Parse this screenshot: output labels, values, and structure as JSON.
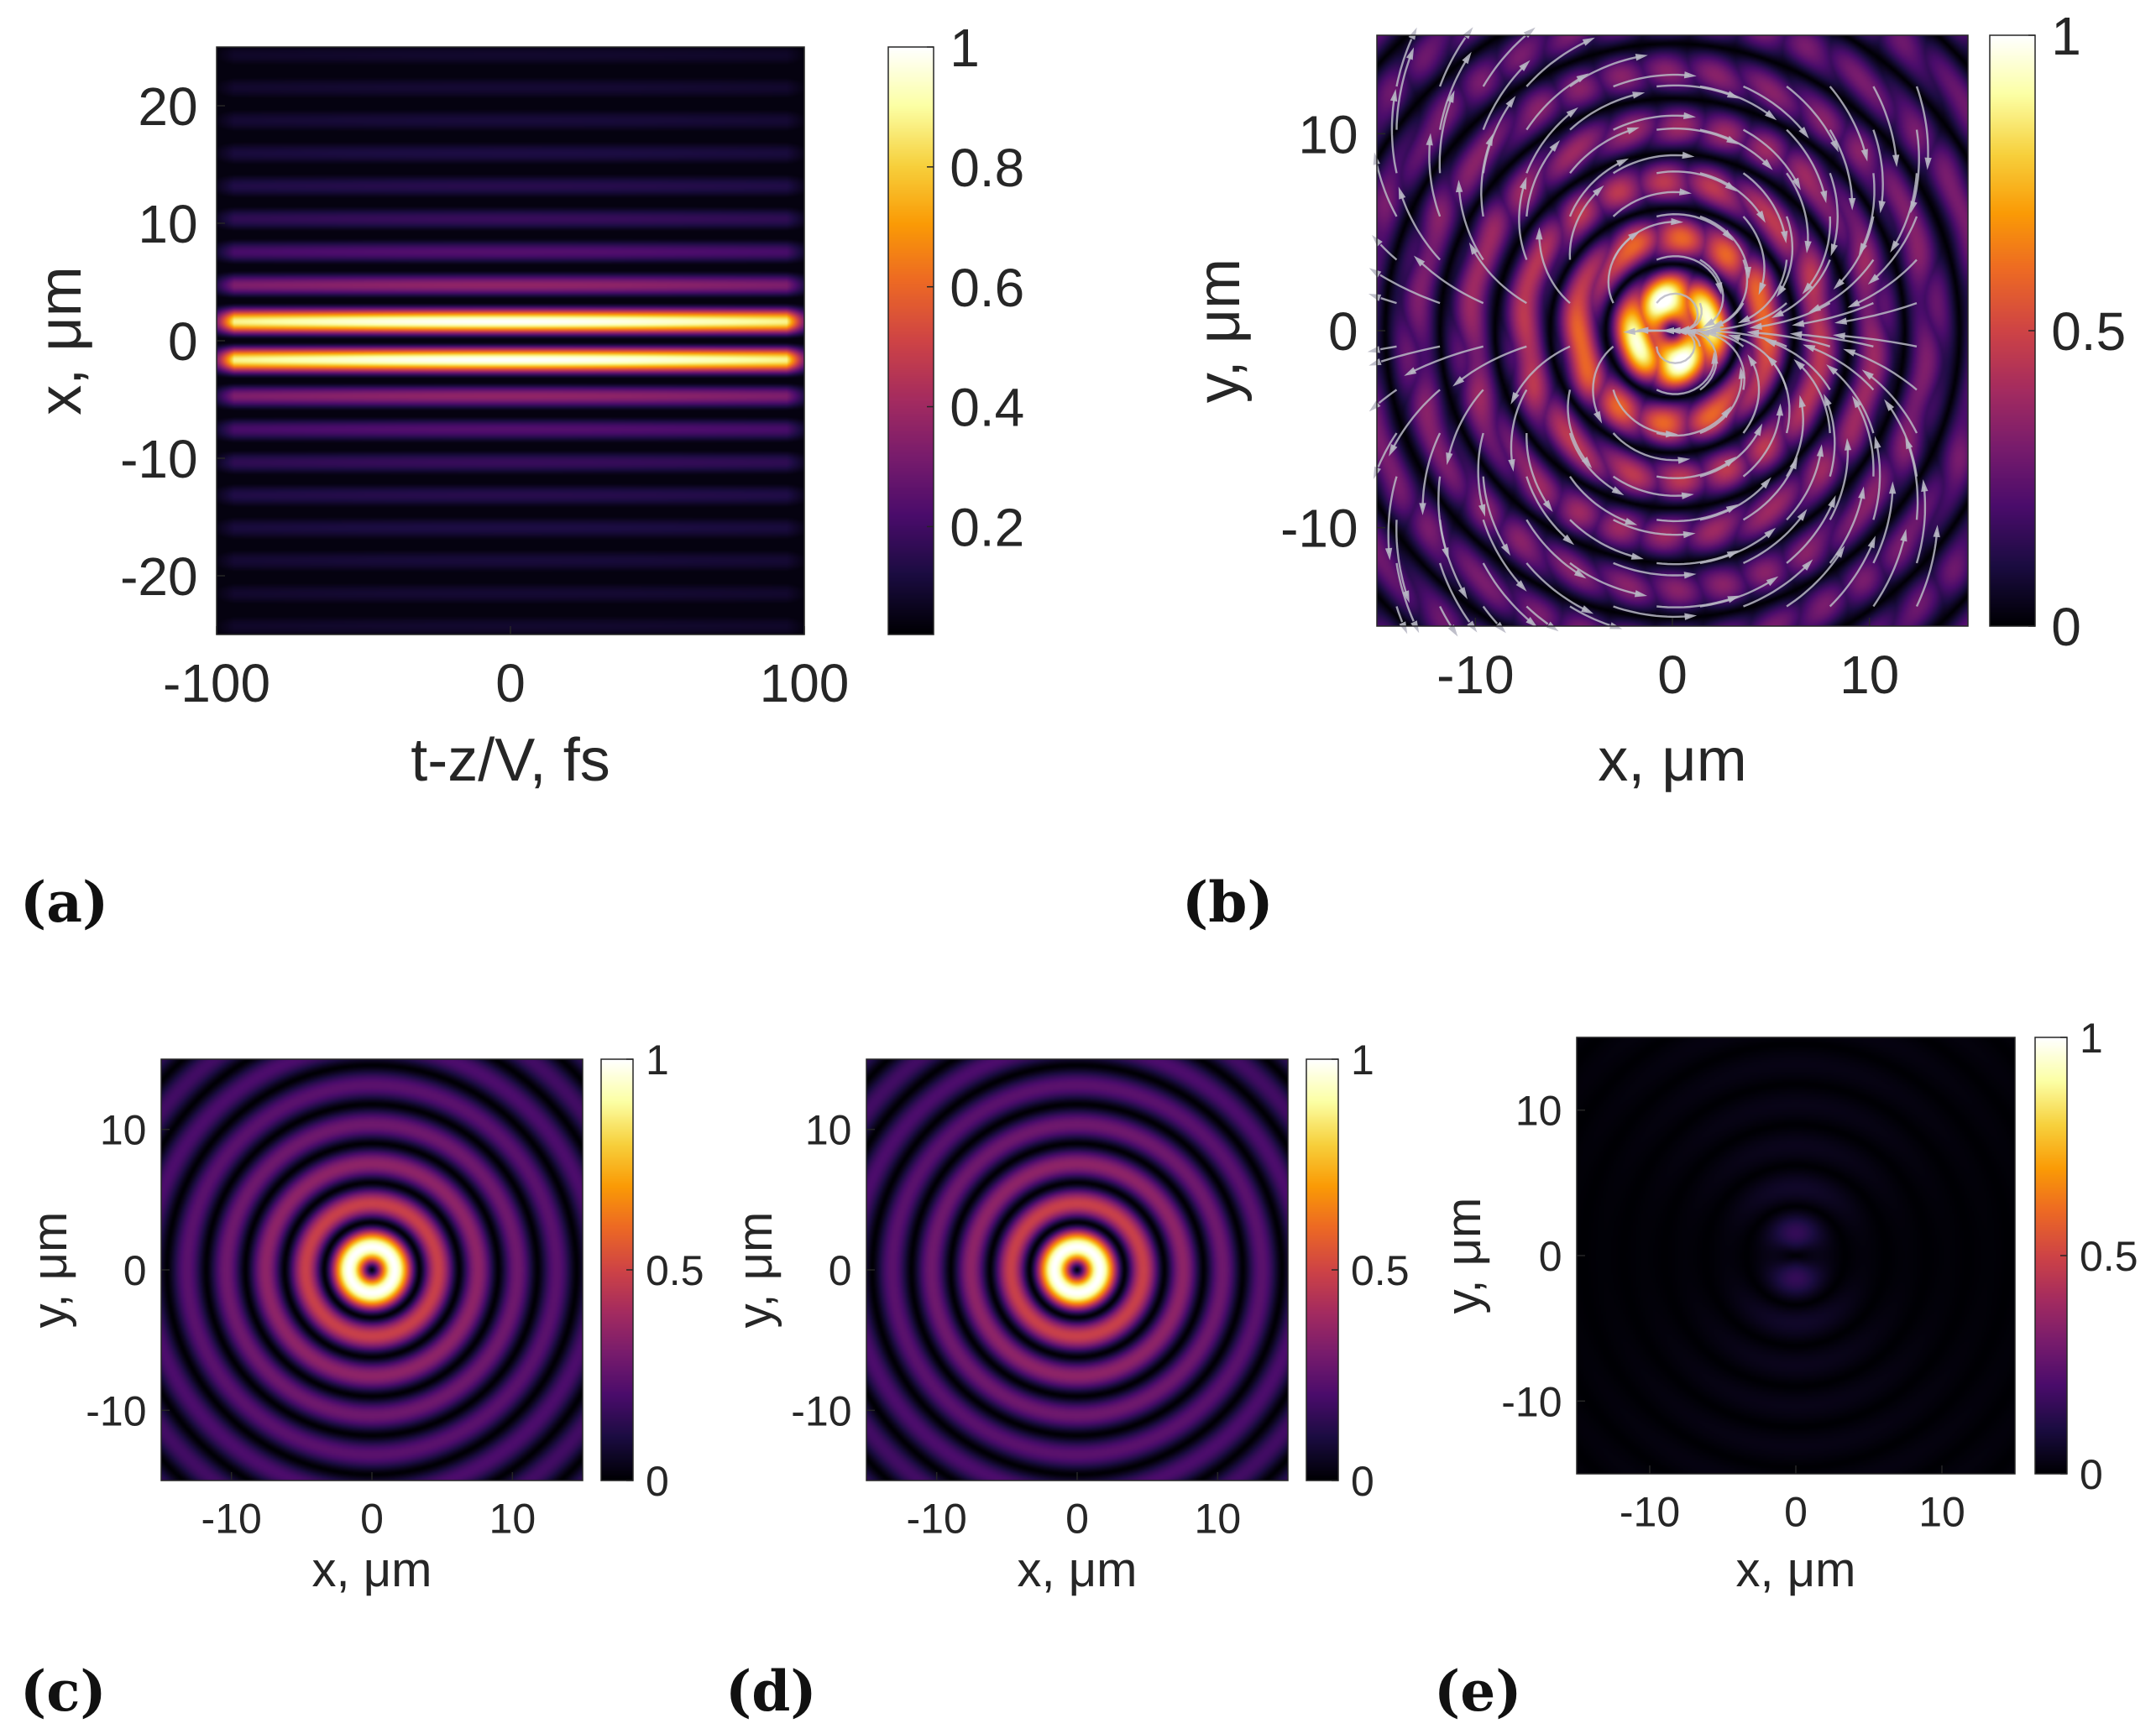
{
  "colormap": {
    "name": "inferno",
    "stops": [
      "#000004",
      "#1b0c41",
      "#4a0c6b",
      "#781c6d",
      "#a52c60",
      "#cf4446",
      "#ed6925",
      "#fb9b06",
      "#f7d13d",
      "#fcffa4",
      "#ffffff"
    ]
  },
  "chart_data": [
    {
      "id": "a",
      "type": "heatmap",
      "panel_label": "(a)",
      "description_kind": "spatio-temporal intensity |E|^2 vs t-z/V and x",
      "xlabel": "t-z/V, fs",
      "ylabel": "x, μm",
      "xlim": [
        -100,
        100
      ],
      "ylim": [
        -25,
        25
      ],
      "xticks": [
        -100,
        0,
        100
      ],
      "xtick_labels": [
        "-100",
        "0",
        "100"
      ],
      "yticks": [
        -20,
        -10,
        0,
        10,
        20
      ],
      "ytick_labels": [
        "-20",
        "-10",
        "0",
        "10",
        "20"
      ],
      "colorbar": {
        "ticks": [
          0.2,
          0.4,
          0.6,
          0.8,
          1
        ],
        "tick_labels": [
          "0.2",
          "0.4",
          "0.6",
          "0.8",
          "1"
        ],
        "range": [
          0.02,
          1
        ]
      },
      "field": {
        "pattern": "bessel_stripes_x",
        "order": 1,
        "kr_per_um": 1.13,
        "envelope": "gaussian_t",
        "t_width_fs": 90
      }
    },
    {
      "id": "b",
      "type": "heatmap",
      "panel_label": "(b)",
      "description_kind": "transverse intensity with polarization streamlines",
      "xlabel": "x, μm",
      "ylabel": "y, μm",
      "xlim": [
        -15,
        15
      ],
      "ylim": [
        -15,
        15
      ],
      "xticks": [
        -10,
        0,
        10
      ],
      "xtick_labels": [
        "-10",
        "0",
        "10"
      ],
      "yticks": [
        -10,
        0,
        10
      ],
      "ytick_labels": [
        "-10",
        "0",
        "10"
      ],
      "colorbar": {
        "ticks": [
          0,
          0.5,
          1
        ],
        "tick_labels": [
          "0",
          "0.5",
          "1"
        ],
        "range": [
          0,
          1
        ]
      },
      "field": {
        "pattern": "bessel_rings_split",
        "order": 1,
        "kr_per_um": 1.13
      },
      "overlay": "dipole_streamlines"
    },
    {
      "id": "c",
      "type": "heatmap",
      "panel_label": "(c)",
      "description_kind": "transverse intensity, total",
      "xlabel": "x, μm",
      "ylabel": "y, μm",
      "xlim": [
        -15,
        15
      ],
      "ylim": [
        -15,
        15
      ],
      "xticks": [
        -10,
        0,
        10
      ],
      "xtick_labels": [
        "-10",
        "0",
        "10"
      ],
      "yticks": [
        -10,
        0,
        10
      ],
      "ytick_labels": [
        "-10",
        "0",
        "10"
      ],
      "colorbar": {
        "ticks": [
          0,
          0.5,
          1
        ],
        "tick_labels": [
          "0",
          "0.5",
          "1"
        ],
        "range": [
          0,
          1
        ]
      },
      "field": {
        "pattern": "bessel_rings",
        "order": 1,
        "kr_per_um": 1.13
      }
    },
    {
      "id": "d",
      "type": "heatmap",
      "panel_label": "(d)",
      "description_kind": "transverse intensity, x-component",
      "xlabel": "x, μm",
      "ylabel": "y, μm",
      "xlim": [
        -15,
        15
      ],
      "ylim": [
        -15,
        15
      ],
      "xticks": [
        -10,
        0,
        10
      ],
      "xtick_labels": [
        "-10",
        "0",
        "10"
      ],
      "yticks": [
        -10,
        0,
        10
      ],
      "ytick_labels": [
        "-10",
        "0",
        "10"
      ],
      "colorbar": {
        "ticks": [
          0,
          0.5,
          1
        ],
        "tick_labels": [
          "0",
          "0.5",
          "1"
        ],
        "range": [
          0,
          1
        ]
      },
      "field": {
        "pattern": "bessel_rings",
        "order": 1,
        "kr_per_um": 1.13
      }
    },
    {
      "id": "e",
      "type": "heatmap",
      "panel_label": "(e)",
      "description_kind": "transverse intensity, weak y-component",
      "xlabel": "x, μm",
      "ylabel": "y, μm",
      "xlim": [
        -15,
        15
      ],
      "ylim": [
        -15,
        15
      ],
      "xticks": [
        -10,
        0,
        10
      ],
      "xtick_labels": [
        "-10",
        "0",
        "10"
      ],
      "yticks": [
        -10,
        0,
        10
      ],
      "ytick_labels": [
        "-10",
        "0",
        "10"
      ],
      "colorbar": {
        "ticks": [
          0,
          0.5,
          1
        ],
        "tick_labels": [
          "0",
          "0.5",
          "1"
        ],
        "range": [
          0,
          1
        ]
      },
      "field": {
        "pattern": "weak_quadrupole_rings",
        "order": 1,
        "kr_per_um": 1.13,
        "peak": 0.12
      }
    }
  ]
}
